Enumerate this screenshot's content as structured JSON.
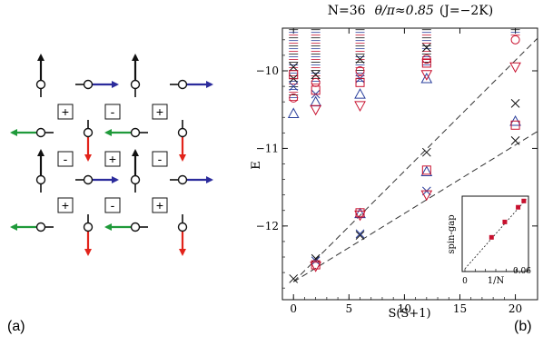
{
  "figure": {
    "panel_a_label": "(a)",
    "panel_b_label": "(b)"
  },
  "panel_a": {
    "description_colors": {
      "up": "#111111",
      "right": "#2b2b9c",
      "left": "#1f9a3a",
      "down": "#e2231a"
    },
    "rows": [
      [
        "up",
        "right",
        "up",
        "right"
      ],
      [
        "left",
        "down",
        "left",
        "down"
      ],
      [
        "up",
        "right",
        "up",
        "right"
      ],
      [
        "left",
        "down",
        "left",
        "down"
      ]
    ],
    "plaquette_signs": [
      [
        "+",
        "-",
        "+"
      ],
      [
        "-",
        "+",
        "-"
      ],
      [
        "+",
        "-",
        "+"
      ]
    ]
  },
  "chart_data": [
    {
      "type": "scatter",
      "title": "N=36",
      "title_theta": "θ/π≈0.85",
      "title_suffix": "(J=−2K)",
      "xlabel": "S(S+1)",
      "ylabel": "E",
      "xlim": [
        -1,
        22
      ],
      "ylim": [
        -12.95,
        -9.45
      ],
      "xticks": [
        0,
        5,
        10,
        15,
        20
      ],
      "yticks": [
        -10,
        -11,
        -12
      ],
      "grid": false,
      "colors": {
        "black": "#111111",
        "blue": "#2a3f9c",
        "red": "#c8102e"
      },
      "series": [
        {
          "marker": "x",
          "color": "black",
          "points": [
            [
              0,
              -12.68
            ],
            [
              2,
              -12.42
            ],
            [
              6,
              -12.12
            ],
            [
              12,
              -11.05
            ],
            [
              20,
              -10.9
            ],
            [
              20,
              -10.42
            ],
            [
              0,
              -10.1
            ],
            [
              0,
              -9.95
            ],
            [
              2,
              -10.05
            ],
            [
              6,
              -9.85
            ],
            [
              12,
              -9.7
            ]
          ]
        },
        {
          "marker": "x",
          "color": "blue",
          "points": [
            [
              2,
              -12.45
            ],
            [
              6,
              -12.1
            ],
            [
              12,
              -11.55
            ],
            [
              0,
              -10.2
            ],
            [
              2,
              -10.3
            ],
            [
              6,
              -10.1
            ]
          ]
        },
        {
          "marker": "triangle-up",
          "color": "blue",
          "points": [
            [
              6,
              -11.84
            ],
            [
              12,
              -11.3
            ],
            [
              20,
              -10.65
            ],
            [
              0,
              -10.55
            ],
            [
              2,
              -10.4
            ],
            [
              6,
              -10.3
            ],
            [
              12,
              -10.1
            ]
          ]
        },
        {
          "marker": "square",
          "color": "red",
          "points": [
            [
              2,
              -12.5
            ],
            [
              6,
              -11.83
            ],
            [
              12,
              -11.28
            ],
            [
              20,
              -10.7
            ],
            [
              0,
              -10.05
            ],
            [
              2,
              -10.25
            ],
            [
              6,
              -10.15
            ],
            [
              12,
              -9.9
            ]
          ]
        },
        {
          "marker": "triangle-down",
          "color": "red",
          "points": [
            [
              2,
              -12.52
            ],
            [
              6,
              -11.86
            ],
            [
              12,
              -11.6
            ],
            [
              20,
              -9.95
            ],
            [
              2,
              -10.5
            ],
            [
              6,
              -10.45
            ],
            [
              12,
              -10.05
            ]
          ]
        },
        {
          "marker": "circle",
          "color": "red",
          "points": [
            [
              0,
              -10.35
            ],
            [
              2,
              -10.15
            ],
            [
              6,
              -10.0
            ],
            [
              12,
              -9.85
            ],
            [
              20,
              -9.6
            ]
          ]
        }
      ],
      "dense_columns_x": [
        0,
        2,
        6,
        12,
        20
      ],
      "dashed_lines": [
        {
          "from": [
            0,
            -12.72
          ],
          "to": [
            22,
            -9.58
          ]
        },
        {
          "from": [
            0,
            -12.72
          ],
          "to": [
            22,
            -10.78
          ]
        }
      ]
    },
    {
      "type": "scatter",
      "xlabel": "1/N",
      "ylabel": "spin-gap",
      "xtick_labels": [
        "0",
        "0.06"
      ],
      "xlim": [
        0,
        0.065
      ],
      "ylim": [
        0,
        1
      ],
      "points": [
        [
          0.028,
          0.45
        ],
        [
          0.042,
          0.67
        ],
        [
          0.056,
          0.88
        ],
        [
          0.062,
          0.97
        ]
      ],
      "fit_line": {
        "from": [
          0,
          0
        ],
        "to": [
          0.065,
          1.0
        ]
      }
    }
  ]
}
